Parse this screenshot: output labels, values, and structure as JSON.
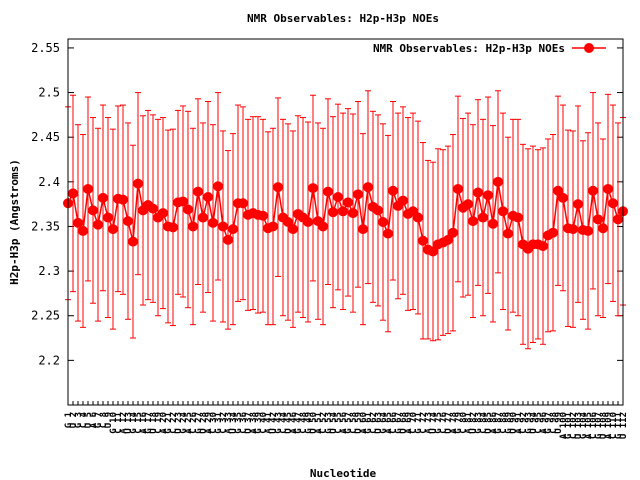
{
  "chart_data": {
    "type": "line",
    "title": "NMR Observables: H2p-H3p NOEs",
    "xlabel": "Nucleotide",
    "ylabel": "H2p-H3p (Angstroms)",
    "ylim": [
      2.15,
      2.56
    ],
    "yticks": [
      2.2,
      2.25,
      2.3,
      2.35,
      2.4,
      2.45,
      2.5,
      2.55
    ],
    "grid": false,
    "legend_position": "top-right",
    "series": [
      {
        "name": "NMR Observables: H2p-H3p NOEs",
        "color": "#ff0000",
        "marker": "circle",
        "values": [
          2.376,
          2.387,
          2.354,
          2.345,
          2.392,
          2.368,
          2.352,
          2.382,
          2.36,
          2.347,
          2.381,
          2.38,
          2.356,
          2.333,
          2.398,
          2.368,
          2.374,
          2.37,
          2.36,
          2.365,
          2.35,
          2.349,
          2.377,
          2.378,
          2.369,
          2.35,
          2.389,
          2.36,
          2.383,
          2.354,
          2.395,
          2.35,
          2.335,
          2.347,
          2.376,
          2.376,
          2.363,
          2.365,
          2.363,
          2.362,
          2.348,
          2.35,
          2.394,
          2.36,
          2.355,
          2.347,
          2.364,
          2.36,
          2.355,
          2.393,
          2.356,
          2.35,
          2.389,
          2.366,
          2.383,
          2.367,
          2.377,
          2.365,
          2.386,
          2.347,
          2.394,
          2.372,
          2.368,
          2.355,
          2.342,
          2.39,
          2.373,
          2.379,
          2.364,
          2.367,
          2.36,
          2.334,
          2.324,
          2.322,
          2.33,
          2.332,
          2.335,
          2.343,
          2.392,
          2.371,
          2.375,
          2.356,
          2.388,
          2.36,
          2.385,
          2.353,
          2.4,
          2.367,
          2.342,
          2.362,
          2.36,
          2.33,
          2.325,
          2.33,
          2.33,
          2.328,
          2.34,
          2.343,
          2.39,
          2.382,
          2.348,
          2.347,
          2.375,
          2.346,
          2.345,
          2.39,
          2.358,
          2.348,
          2.392,
          2.376,
          2.358,
          2.367
        ],
        "error": [
          0.108,
          0.11,
          0.11,
          0.108,
          0.103,
          0.104,
          0.108,
          0.104,
          0.112,
          0.112,
          0.104,
          0.106,
          0.11,
          0.108,
          0.102,
          0.106,
          0.106,
          0.105,
          0.11,
          0.107,
          0.108,
          0.11,
          0.103,
          0.107,
          0.11,
          0.11,
          0.104,
          0.106,
          0.107,
          0.11,
          0.105,
          0.107,
          0.1,
          0.107,
          0.11,
          0.108,
          0.107,
          0.108,
          0.11,
          0.108,
          0.108,
          0.11,
          0.1,
          0.11,
          0.11,
          0.11,
          0.11,
          0.112,
          0.112,
          0.104,
          0.11,
          0.11,
          0.104,
          0.107,
          0.104,
          0.11,
          0.105,
          0.111,
          0.104,
          0.107,
          0.108,
          0.107,
          0.107,
          0.11,
          0.11,
          0.1,
          0.104,
          0.105,
          0.108,
          0.11,
          0.108,
          0.11,
          0.1,
          0.1,
          0.107,
          0.104,
          0.105,
          0.11,
          0.104,
          0.1,
          0.102,
          0.108,
          0.104,
          0.11,
          0.11,
          0.11,
          0.102,
          0.11,
          0.108,
          0.108,
          0.11,
          0.112,
          0.112,
          0.11,
          0.106,
          0.11,
          0.108,
          0.11,
          0.106,
          0.104,
          0.11,
          0.11,
          0.11,
          0.1,
          0.11,
          0.11,
          0.108,
          0.1,
          0.106,
          0.11,
          0.108,
          0.105
        ]
      }
    ],
    "x": [
      "G 1",
      "U 2",
      "G 3",
      "C 4",
      "U 5",
      "A 6",
      "G 7",
      "C 8",
      "U 9",
      "G 10",
      "C 11",
      "A 12",
      "U 13",
      "G 14",
      "C 15",
      "A 16",
      "G 17",
      "U 18",
      "C 19",
      "A 20",
      "G 21",
      "C 22",
      "U 23",
      "G 24",
      "A 25",
      "C 26",
      "G 27",
      "U 28",
      "A 29",
      "C 30",
      "G 31",
      "C 32",
      "A 33",
      "U 34",
      "G 35",
      "C 36",
      "U 37",
      "A 38",
      "G 39",
      "C 40",
      "A 41",
      "U 42",
      "G 43",
      "C 44",
      "U 45",
      "A 46",
      "G 47",
      "C 48",
      "G 49",
      "U 50",
      "A 51",
      "C 52",
      "G 53",
      "U 54",
      "C 55",
      "A 56",
      "G 57",
      "C 58",
      "U 59",
      "A 60",
      "G 61",
      "C 62",
      "U 63",
      "G 64",
      "A 65",
      "C 66",
      "G 67",
      "U 68",
      "A 69",
      "C 70",
      "G 71",
      "C 72",
      "A 73",
      "U 74",
      "G 75",
      "C 76",
      "U 77",
      "A 78",
      "G 79",
      "C 80",
      "A 81",
      "U 82",
      "G 83",
      "C 84",
      "U 85",
      "A 86",
      "G 87",
      "C 88",
      "G 89",
      "U 90",
      "A 91",
      "C 92",
      "G 93",
      "U 94",
      "C 95",
      "A 96",
      "G 97",
      "C 98",
      "U 99",
      "A 100",
      "G 101",
      "C 102",
      "U 103",
      "G 104",
      "A 105",
      "C 106",
      "G 107",
      "U 108",
      "A 109",
      "C 110",
      "G 111",
      "U 112"
    ]
  }
}
